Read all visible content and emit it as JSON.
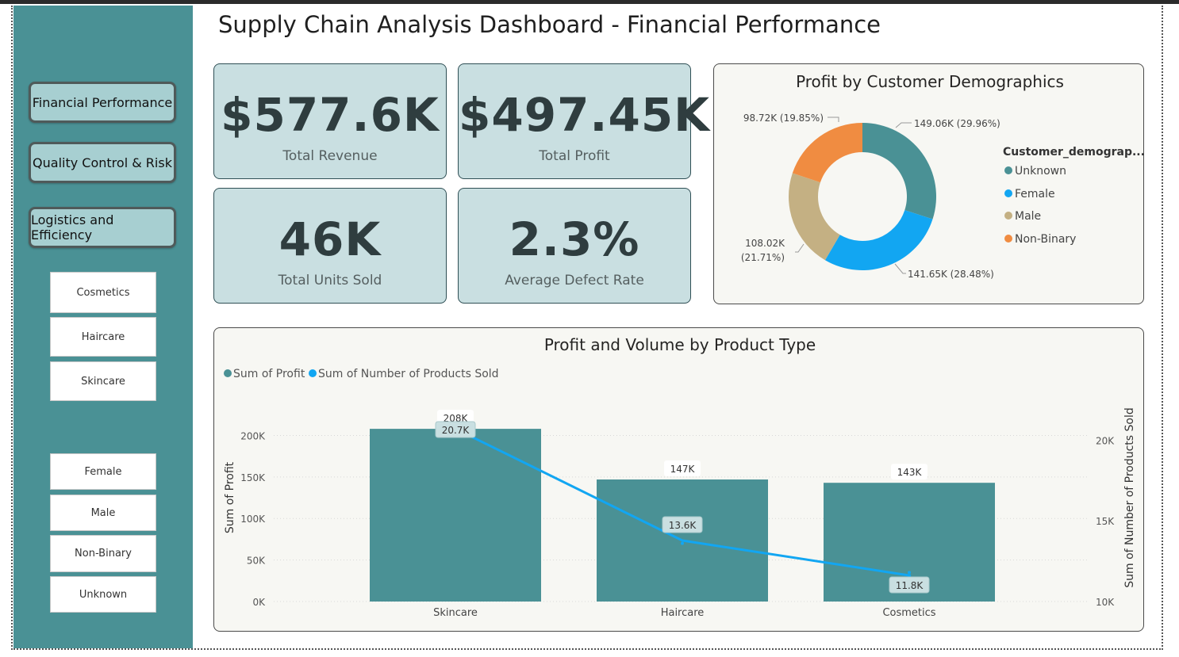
{
  "title": "Supply Chain Analysis Dashboard - Financial Performance",
  "nav": {
    "financial": "Financial Performance",
    "quality": "Quality Control & Risk",
    "logistics": "Logistics and Efficiency"
  },
  "product_slicers": [
    "Cosmetics",
    "Haircare",
    "Skincare"
  ],
  "gender_slicers": [
    "Female",
    "Male",
    "Non-Binary",
    "Unknown"
  ],
  "kpis": [
    {
      "value": "$577.6K",
      "label": "Total Revenue"
    },
    {
      "value": "$497.45K",
      "label": "Total Profit"
    },
    {
      "value": "46K",
      "label": "Total Units Sold"
    },
    {
      "value": "2.3%",
      "label": "Average Defect Rate"
    }
  ],
  "colors": {
    "teal": "#4a9195",
    "blue": "#12a6f2",
    "tan": "#c4b083",
    "orange": "#f08c41"
  },
  "chart_data": [
    {
      "type": "pie",
      "title": "Profit by Customer Demographics",
      "legend_title": "Customer_demograp...",
      "legend_position": "right",
      "slices": [
        {
          "name": "Unknown",
          "value": 149.06,
          "label": "149.06K (29.96%)",
          "color": "#4a9195"
        },
        {
          "name": "Female",
          "value": 141.65,
          "label": "141.65K (28.48%)",
          "color": "#12a6f2"
        },
        {
          "name": "Male",
          "value": 108.02,
          "label_line1": "108.02K",
          "label_line2": "(21.71%)",
          "color": "#c4b083"
        },
        {
          "name": "Non-Binary",
          "value": 98.72,
          "label": "98.72K (19.85%)",
          "color": "#f08c41"
        }
      ]
    },
    {
      "type": "bar",
      "title": "Profit and Volume by Product Type",
      "categories": [
        "Skincare",
        "Haircare",
        "Cosmetics"
      ],
      "series": [
        {
          "name": "Sum of Profit",
          "values": [
            208,
            147,
            143
          ],
          "labels": [
            "208K",
            "147K",
            "143K"
          ],
          "color": "#4a9195"
        },
        {
          "name": "Sum of Number of Products Sold",
          "values": [
            20.7,
            13.6,
            11.8
          ],
          "labels": [
            "20.7K",
            "13.6K",
            "11.8K"
          ],
          "color": "#12a6f2"
        }
      ],
      "ylabel": "Sum of Profit",
      "y2label": "Sum of Number of Products Sold",
      "ylim": [
        0,
        210
      ],
      "yticks": [
        "0K",
        "50K",
        "100K",
        "150K",
        "200K"
      ],
      "y2lim": [
        10,
        20.8
      ],
      "y2ticks": [
        "10K",
        "15K",
        "20K"
      ],
      "legend_position": "top-left"
    }
  ]
}
